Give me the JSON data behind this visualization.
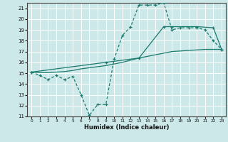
{
  "xlabel": "Humidex (Indice chaleur)",
  "bg_color": "#cce8e8",
  "grid_color": "#ffffff",
  "line_color": "#1a7a6e",
  "xlim": [
    -0.5,
    23.5
  ],
  "ylim": [
    11,
    21.5
  ],
  "yticks": [
    11,
    12,
    13,
    14,
    15,
    16,
    17,
    18,
    19,
    20,
    21
  ],
  "xticks": [
    0,
    1,
    2,
    3,
    4,
    5,
    6,
    7,
    8,
    9,
    10,
    11,
    12,
    13,
    14,
    15,
    16,
    17,
    18,
    19,
    20,
    21,
    22,
    23
  ],
  "line1_x": [
    0,
    1,
    2,
    3,
    4,
    5,
    6,
    7,
    8,
    9,
    10,
    11,
    12,
    13,
    14,
    15,
    16,
    17,
    18,
    19,
    20,
    21,
    22,
    23
  ],
  "line1_y": [
    15.1,
    14.8,
    14.4,
    14.8,
    14.4,
    14.7,
    13.0,
    11.1,
    12.1,
    12.1,
    16.3,
    18.5,
    19.3,
    21.3,
    21.3,
    21.3,
    21.5,
    19.0,
    19.2,
    19.2,
    19.2,
    19.0,
    18.0,
    17.2
  ],
  "line2_x": [
    0,
    1,
    2,
    3,
    4,
    5,
    6,
    7,
    8,
    9,
    10,
    11,
    12,
    13,
    14,
    15,
    16,
    17,
    18,
    19,
    20,
    21,
    22,
    23
  ],
  "line2_y": [
    15.1,
    15.05,
    15.05,
    15.1,
    15.15,
    15.25,
    15.4,
    15.5,
    15.6,
    15.7,
    15.85,
    16.0,
    16.2,
    16.4,
    16.55,
    16.7,
    16.85,
    17.0,
    17.05,
    17.1,
    17.15,
    17.2,
    17.2,
    17.2
  ],
  "line3_x": [
    0,
    9,
    13,
    16,
    17,
    20,
    22,
    23
  ],
  "line3_y": [
    15.1,
    16.0,
    16.4,
    19.3,
    19.3,
    19.3,
    19.2,
    17.2
  ]
}
